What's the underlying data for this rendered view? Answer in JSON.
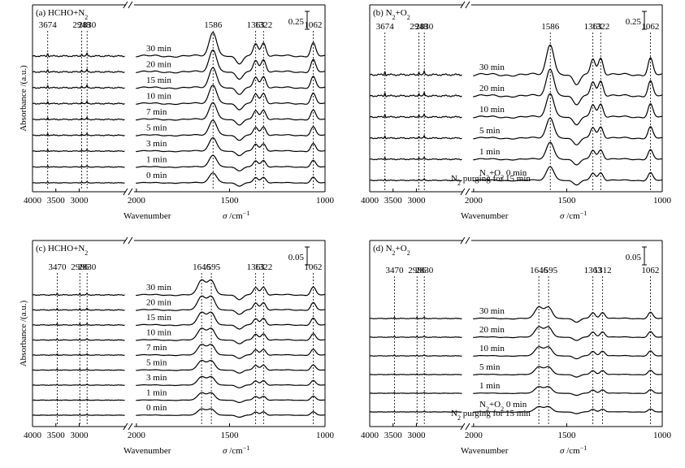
{
  "chart_data": [
    {
      "type": "line",
      "panel_label": "(a)",
      "gas": [
        "HCHO+N",
        "2"
      ],
      "scale_bar": "0.25",
      "xlabel": "Wavenumber",
      "xunit": [
        "σ",
        " /cm",
        "−1"
      ],
      "ylabel": "Absorbance /(a.u.)",
      "xlim_left": [
        4000,
        2000
      ],
      "xlim_right": [
        2000,
        1000
      ],
      "x_ticks_left": [
        "4000",
        "3500",
        "3000",
        "2000"
      ],
      "x_ticks_right": [
        "1500",
        "1000"
      ],
      "peaks": [
        {
          "label": "3674",
          "x": 3674
        },
        {
          "label": "2948",
          "x": 2948
        },
        {
          "label": "2830",
          "x": 2830
        },
        {
          "label": "1586",
          "x": 1586
        },
        {
          "label": "1363",
          "x": 1363
        },
        {
          "label": "1322",
          "x": 1322
        },
        {
          "label": "1062",
          "x": 1062
        }
      ],
      "series": [
        {
          "name": "30 min"
        },
        {
          "name": "20 min"
        },
        {
          "name": "15 min"
        },
        {
          "name": "10 min"
        },
        {
          "name": "7 min"
        },
        {
          "name": "5 min"
        },
        {
          "name": "3 min"
        },
        {
          "name": "1 min"
        },
        {
          "name": "0 min"
        }
      ],
      "purge_note": ""
    },
    {
      "type": "line",
      "panel_label": "(b)",
      "gas": [
        "N",
        "2",
        "+O",
        "2"
      ],
      "scale_bar": "0.25",
      "xlabel": "Wavenumber",
      "xunit": [
        "σ",
        " /cm",
        "−1"
      ],
      "ylabel": "",
      "xlim_left": [
        4000,
        2000
      ],
      "xlim_right": [
        2000,
        1000
      ],
      "x_ticks_left": [
        "4000",
        "3500",
        "3000",
        "2000"
      ],
      "x_ticks_right": [
        "1500",
        "1000"
      ],
      "peaks": [
        {
          "label": "3674",
          "x": 3674
        },
        {
          "label": "2948",
          "x": 2948
        },
        {
          "label": "2830",
          "x": 2830
        },
        {
          "label": "1586",
          "x": 1586
        },
        {
          "label": "1363",
          "x": 1363
        },
        {
          "label": "1322",
          "x": 1322
        },
        {
          "label": "1062",
          "x": 1062
        }
      ],
      "series": [
        {
          "name": "30 min"
        },
        {
          "name": "20 min"
        },
        {
          "name": "10 min"
        },
        {
          "name": "5 min"
        },
        {
          "name": "1 min"
        },
        {
          "name": "N2+O2 0 min"
        }
      ],
      "purge_note": "N2 purging for 15 min"
    },
    {
      "type": "line",
      "panel_label": "(c)",
      "gas": [
        "HCHO+N",
        "2"
      ],
      "scale_bar": "0.05",
      "xlabel": "Wavenumber",
      "xunit": [
        "σ",
        " /cm",
        "−1"
      ],
      "ylabel": "Absorbance /(a.u.)",
      "xlim_left": [
        4000,
        2000
      ],
      "xlim_right": [
        2000,
        1000
      ],
      "x_ticks_left": [
        "4000",
        "3500",
        "3000",
        "2000"
      ],
      "x_ticks_right": [
        "1500",
        "1000"
      ],
      "peaks": [
        {
          "label": "3470",
          "x": 3470
        },
        {
          "label": "2986",
          "x": 2986
        },
        {
          "label": "2830",
          "x": 2830
        },
        {
          "label": "1646",
          "x": 1646
        },
        {
          "label": "1595",
          "x": 1595
        },
        {
          "label": "1363",
          "x": 1363
        },
        {
          "label": "1322",
          "x": 1322
        },
        {
          "label": "1062",
          "x": 1062
        }
      ],
      "series": [
        {
          "name": "30 min"
        },
        {
          "name": "20 min"
        },
        {
          "name": "15 min"
        },
        {
          "name": "10 min"
        },
        {
          "name": "7 min"
        },
        {
          "name": "5 min"
        },
        {
          "name": "3 min"
        },
        {
          "name": "1 min"
        },
        {
          "name": "0 min"
        }
      ],
      "purge_note": ""
    },
    {
      "type": "line",
      "panel_label": "(d)",
      "gas": [
        "N",
        "2",
        "+O",
        "2"
      ],
      "scale_bar": "0.05",
      "xlabel": "Wavenumber",
      "xunit": [
        "σ",
        " /cm",
        "−1"
      ],
      "ylabel": "",
      "xlim_left": [
        4000,
        2000
      ],
      "xlim_right": [
        2000,
        1000
      ],
      "x_ticks_left": [
        "4000",
        "3500",
        "3000",
        "2000"
      ],
      "x_ticks_right": [
        "1500",
        "1000"
      ],
      "peaks": [
        {
          "label": "3470",
          "x": 3470
        },
        {
          "label": "2986",
          "x": 2986
        },
        {
          "label": "2830",
          "x": 2830
        },
        {
          "label": "1646",
          "x": 1646
        },
        {
          "label": "1595",
          "x": 1595
        },
        {
          "label": "1363",
          "x": 1363
        },
        {
          "label": "1312",
          "x": 1312
        },
        {
          "label": "1062",
          "x": 1062
        }
      ],
      "series": [
        {
          "name": "30 min"
        },
        {
          "name": "20 min"
        },
        {
          "name": "10 min"
        },
        {
          "name": "5 min"
        },
        {
          "name": "1 min"
        },
        {
          "name": "N2+O2 0 min"
        }
      ],
      "purge_note": "N2 purging for 15 min"
    }
  ]
}
